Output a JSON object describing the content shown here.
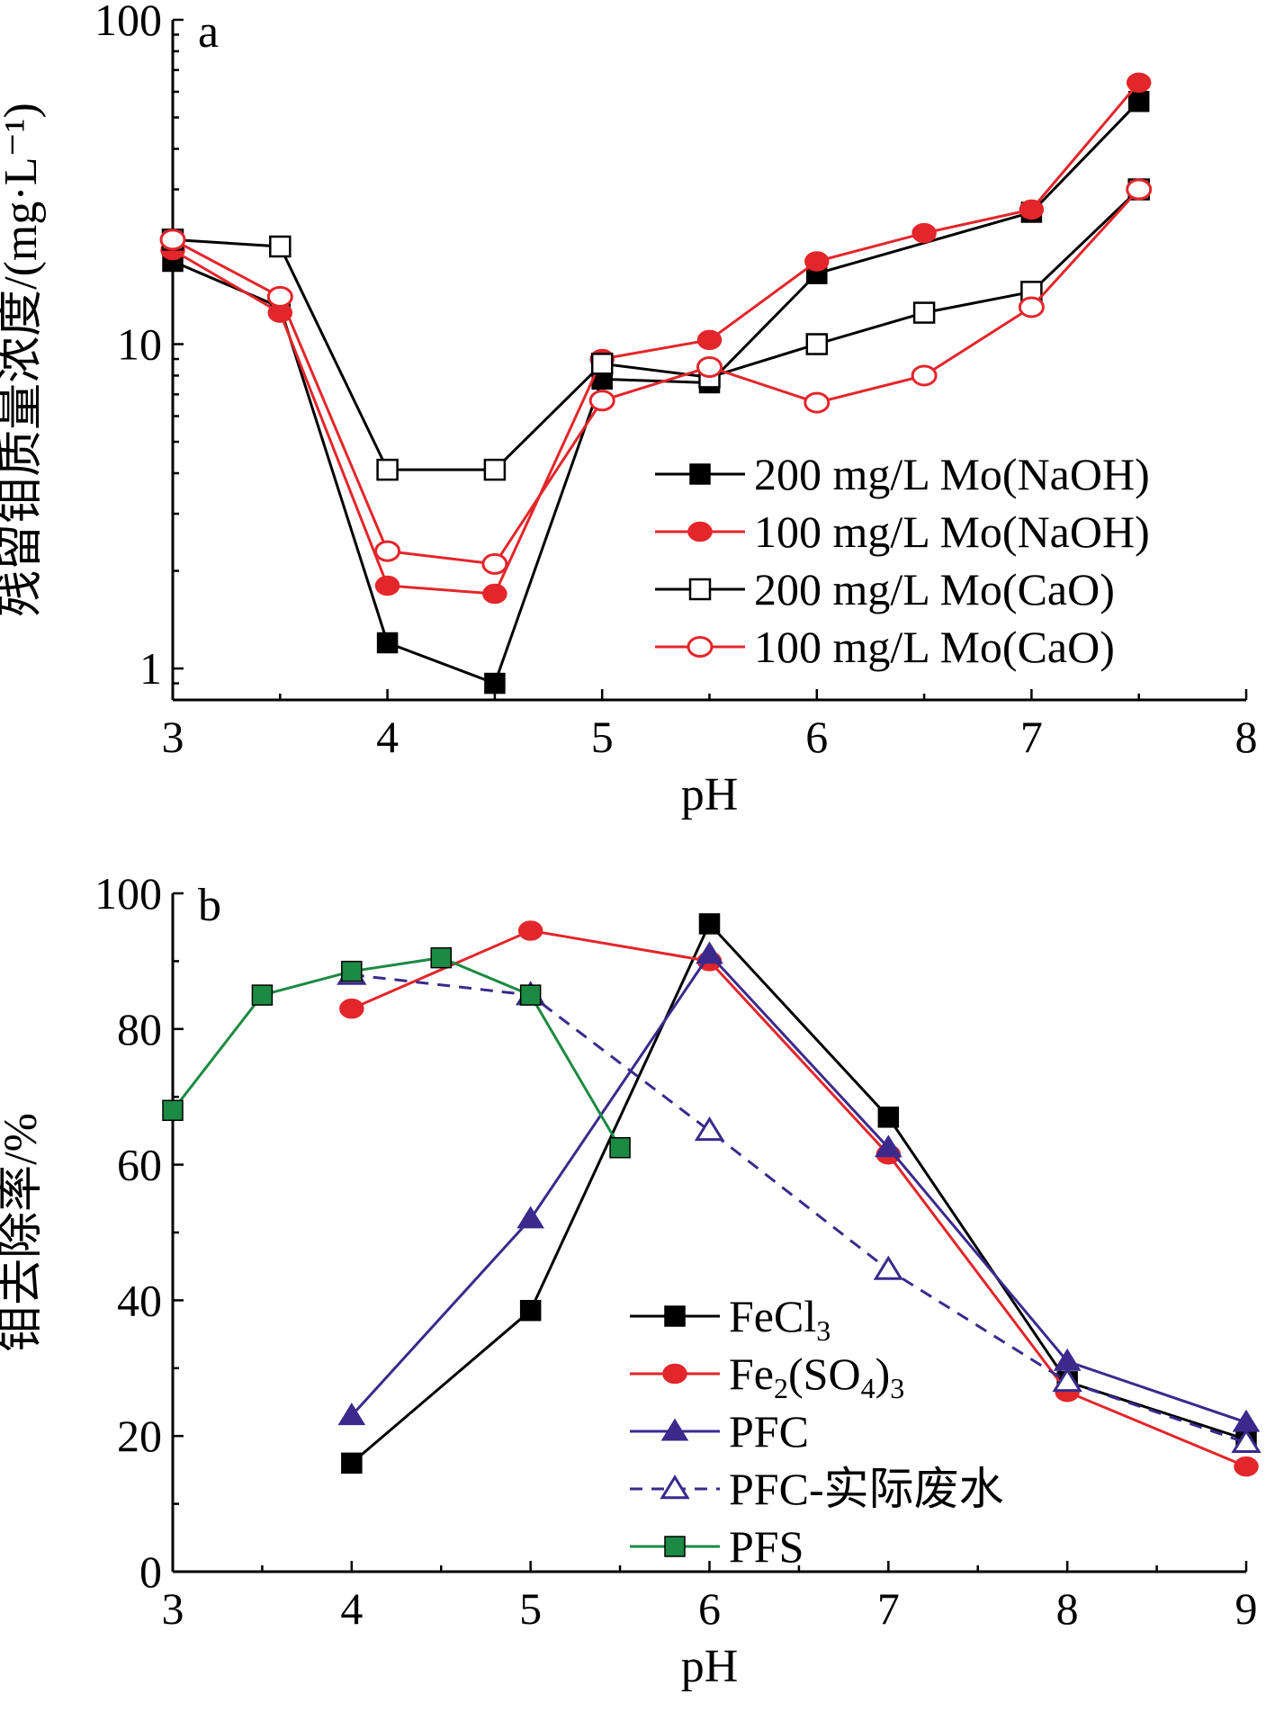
{
  "chart_data": [
    {
      "panel": "a",
      "type": "line",
      "yscale": "log",
      "xlabel": "pH",
      "ylabel": "残留钼质量浓度/(mg·L⁻¹)",
      "xlim": [
        3,
        8
      ],
      "ylim": [
        0.8,
        100
      ],
      "xticks": [
        "3",
        "4",
        "5",
        "6",
        "7",
        "8"
      ],
      "yticks": [
        {
          "value": 1,
          "label": "1"
        },
        {
          "value": 10,
          "label": "10"
        },
        {
          "value": 100,
          "label": "100"
        }
      ],
      "legend_position": "lower-right",
      "series": [
        {
          "name": "200 mg/L Mo(NaOH)",
          "color": "#000000",
          "marker": "square-filled",
          "dashed": false,
          "x": [
            3,
            3.5,
            4,
            4.5,
            5,
            5.5,
            6,
            7,
            7.5
          ],
          "y": [
            18,
            13,
            1.2,
            0.9,
            7.8,
            7.6,
            16.5,
            25.5,
            56
          ]
        },
        {
          "name": "100 mg/L Mo(NaOH)",
          "color": "#e3262b",
          "marker": "circle-filled",
          "dashed": false,
          "x": [
            3,
            3.5,
            4,
            4.5,
            5,
            5.5,
            6,
            6.5,
            7,
            7.5
          ],
          "y": [
            19.5,
            12.5,
            1.8,
            1.7,
            9,
            10.3,
            18,
            22,
            26,
            64
          ]
        },
        {
          "name": "200 mg/L Mo(CaO)",
          "color": "#000000",
          "marker": "square-open",
          "dashed": false,
          "x": [
            3,
            3.5,
            4,
            4.5,
            5,
            5.5,
            6,
            6.5,
            7,
            7.5
          ],
          "y": [
            21,
            20,
            4.1,
            4.1,
            8.7,
            7.9,
            10,
            12.5,
            14.5,
            30
          ]
        },
        {
          "name": "100 mg/L Mo(CaO)",
          "color": "#e3262b",
          "marker": "circle-open",
          "dashed": false,
          "x": [
            3,
            3.5,
            4,
            4.5,
            5,
            5.5,
            6,
            6.5,
            7,
            7.5
          ],
          "y": [
            21,
            14,
            2.3,
            2.1,
            6.7,
            8.5,
            6.6,
            8,
            13,
            30
          ]
        }
      ]
    },
    {
      "panel": "b",
      "type": "line",
      "yscale": "linear",
      "xlabel": "pH",
      "ylabel": "钼去除率/%",
      "xlim": [
        3,
        9
      ],
      "ylim": [
        0,
        100
      ],
      "xticks": [
        "3",
        "4",
        "5",
        "6",
        "7",
        "8",
        "9"
      ],
      "yticks": [
        {
          "value": 0,
          "label": "0"
        },
        {
          "value": 20,
          "label": "20"
        },
        {
          "value": 40,
          "label": "40"
        },
        {
          "value": 60,
          "label": "60"
        },
        {
          "value": 80,
          "label": "80"
        },
        {
          "value": 100,
          "label": "100"
        }
      ],
      "legend_position": "lower-center",
      "series": [
        {
          "name": "FeCl",
          "sub": "3",
          "color": "#000000",
          "marker": "square-filled",
          "dashed": false,
          "x": [
            4,
            5,
            6,
            7,
            8,
            9
          ],
          "y": [
            16,
            38.5,
            95.5,
            67,
            28,
            19.5
          ]
        },
        {
          "name": "Fe",
          "sub": "2",
          "name2": "(SO",
          "sub2": "4",
          "name3": ")",
          "sub3": "3",
          "color": "#e3262b",
          "marker": "circle-filled",
          "dashed": false,
          "x": [
            4,
            5,
            6,
            7,
            8,
            9
          ],
          "y": [
            83,
            94.5,
            90,
            61.5,
            26.5,
            15.5
          ]
        },
        {
          "name": "PFC",
          "color": "#3b2a8c",
          "marker": "triangle-filled",
          "dashed": false,
          "x": [
            4,
            5,
            6,
            7,
            8,
            9
          ],
          "y": [
            23,
            52,
            91,
            62.5,
            31,
            22
          ]
        },
        {
          "name": "PFC-实际废水",
          "color": "#3b2a8c",
          "marker": "triangle-open",
          "dashed": true,
          "x": [
            4,
            5,
            6,
            7,
            8,
            9
          ],
          "y": [
            88,
            85,
            65,
            44.5,
            28,
            19
          ]
        },
        {
          "name": "PFS",
          "color": "#1b8a42",
          "marker": "square-filled",
          "dashed": false,
          "x": [
            3,
            3.5,
            4,
            4.5,
            5,
            5.5
          ],
          "y": [
            68,
            85,
            88.5,
            90.5,
            85,
            62.5
          ]
        }
      ]
    }
  ]
}
